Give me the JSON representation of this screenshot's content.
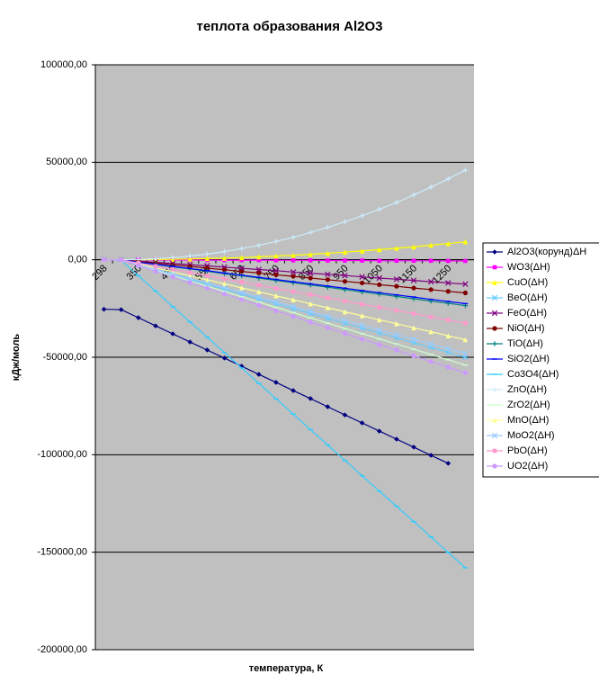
{
  "chart_data": {
    "type": "line",
    "title": "теплота образования Al2O3",
    "x_label": "температура, К",
    "y_label": "кДж/моль",
    "categories": [
      298,
      null,
      350,
      null,
      450,
      null,
      550,
      null,
      650,
      null,
      750,
      null,
      850,
      null,
      950,
      null,
      1050,
      null,
      1150,
      null,
      1250,
      null
    ],
    "ylim": [
      -200000,
      100000
    ],
    "yticks": [
      {
        "value": -200000,
        "label": "-200000,00"
      },
      {
        "value": -150000,
        "label": "-150000,00"
      },
      {
        "value": -100000,
        "label": "-100000,00"
      },
      {
        "value": -50000,
        "label": "-50000,00"
      },
      {
        "value": 0,
        "label": "0,00"
      },
      {
        "value": 50000,
        "label": "50000,00"
      },
      {
        "value": 100000,
        "label": "100000,00"
      }
    ],
    "grid": true,
    "background": "#c0c0c0",
    "legend": "right",
    "series": [
      {
        "name": "Al2O3(корунд)ΔH",
        "color": "#000080",
        "marker": "diamond",
        "values": [
          -25400,
          -25600,
          -29700,
          -33900,
          -38000,
          -42200,
          -46300,
          -50400,
          -54600,
          -58800,
          -62900,
          -67100,
          -71200,
          -75400,
          -79600,
          -83700,
          -87900,
          -92000,
          -96100,
          -100300,
          -104400,
          null
        ]
      },
      {
        "name": "WO3(ΔH)",
        "color": "#ff00ff",
        "marker": "square",
        "values": [
          0,
          0,
          0,
          -100,
          -100,
          -100,
          -200,
          -200,
          -200,
          -200,
          -300,
          -300,
          -300,
          -400,
          -400,
          -400,
          -500,
          -500,
          -500,
          -500,
          -600,
          -600
        ]
      },
      {
        "name": "CuO(ΔH)",
        "color": "#ffff00",
        "marker": "triangle",
        "values": [
          0,
          0,
          0,
          100,
          200,
          400,
          600,
          800,
          1100,
          1500,
          1900,
          2300,
          2800,
          3300,
          3900,
          4500,
          5200,
          5900,
          6600,
          7500,
          8300,
          9200
        ]
      },
      {
        "name": "BeO(ΔH)",
        "color": "#66ccff",
        "marker": "x",
        "values": [
          0,
          -100,
          -2600,
          -5100,
          -7600,
          -10100,
          -12600,
          -15100,
          -17600,
          -20100,
          -22600,
          -25100,
          -27600,
          -30100,
          -32600,
          -35100,
          -37600,
          -40000,
          -42500,
          -45000,
          -47500,
          -50000
        ]
      },
      {
        "name": "FeO(ΔH)",
        "color": "#800080",
        "marker": "x",
        "values": [
          0,
          0,
          -700,
          -1300,
          -1900,
          -2500,
          -3100,
          -3800,
          -4400,
          -5000,
          -5600,
          -6300,
          -6900,
          -7500,
          -8100,
          -8800,
          -9400,
          -10000,
          -10600,
          -11300,
          -11900,
          -12500
        ]
      },
      {
        "name": "NiO(ΔH)",
        "color": "#800000",
        "marker": "circle",
        "values": [
          0,
          0,
          -900,
          -1700,
          -2600,
          -3400,
          -4300,
          -5100,
          -6000,
          -6800,
          -7700,
          -8500,
          -9400,
          -10200,
          -11100,
          -11900,
          -12800,
          -13600,
          -14500,
          -15300,
          -16200,
          -17000
        ]
      },
      {
        "name": "TiO(ΔH)",
        "color": "#008080",
        "marker": "plus",
        "values": [
          0,
          0,
          -1200,
          -2400,
          -3600,
          -4700,
          -5900,
          -7100,
          -8200,
          -9400,
          -10600,
          -11800,
          -12900,
          -14100,
          -15300,
          -16500,
          -17600,
          -18800,
          -20000,
          -21200,
          -22300,
          -23500
        ]
      },
      {
        "name": "SiO2(ΔH)",
        "color": "#0000ff",
        "marker": "dash",
        "values": [
          0,
          0,
          -1200,
          -2300,
          -3400,
          -4500,
          -5600,
          -6800,
          -7900,
          -9000,
          -10100,
          -11300,
          -12400,
          -13500,
          -14600,
          -15800,
          -16900,
          -18000,
          -19100,
          -20300,
          -21400,
          -22500
        ]
      },
      {
        "name": "Co3O4(ΔH)",
        "color": "#33ccff",
        "marker": "dash",
        "values": [
          0,
          -300,
          -8200,
          -16100,
          -24000,
          -31900,
          -39700,
          -47600,
          -55500,
          -63400,
          -71300,
          -79200,
          -87100,
          -95000,
          -102900,
          -110800,
          -118700,
          -126400,
          -134300,
          -142200,
          -150100,
          -158000
        ]
      },
      {
        "name": "ZnO(ΔH)",
        "color": "#ccecff",
        "marker": "plus",
        "values": [
          0,
          0,
          100,
          500,
          1100,
          1900,
          2900,
          4200,
          5700,
          7400,
          9400,
          11500,
          14000,
          16600,
          19500,
          22600,
          25900,
          29400,
          33200,
          37300,
          41500,
          46000
        ]
      },
      {
        "name": "ZrO2(ΔH)",
        "color": "#ccffcc",
        "marker": "dash",
        "values": [
          0,
          -100,
          -2800,
          -5500,
          -8200,
          -10900,
          -13600,
          -16300,
          -19000,
          -21700,
          -24400,
          -27100,
          -29800,
          -32500,
          -35200,
          -37900,
          -40600,
          -43200,
          -45900,
          -48600,
          -51300,
          -54000
        ]
      },
      {
        "name": "MnO(ΔH)",
        "color": "#ffff99",
        "marker": "triangle",
        "values": [
          0,
          -100,
          -2100,
          -4200,
          -6200,
          -8300,
          -10300,
          -12300,
          -14400,
          -16400,
          -18500,
          -20500,
          -22600,
          -24600,
          -26700,
          -28700,
          -30800,
          -32800,
          -34900,
          -36900,
          -39000,
          -41000
        ]
      },
      {
        "name": "MoO2(ΔH)",
        "color": "#99ccff",
        "marker": "x",
        "values": [
          0,
          -100,
          -2500,
          -4900,
          -7300,
          -9700,
          -12000,
          -14400,
          -16800,
          -19200,
          -21600,
          -24000,
          -26400,
          -28800,
          -31200,
          -33600,
          -36000,
          -38400,
          -40800,
          -43200,
          -45600,
          -48000
        ]
      },
      {
        "name": "PbO(ΔH)",
        "color": "#ff99cc",
        "marker": "square",
        "values": [
          0,
          -100,
          -1700,
          -3300,
          -4900,
          -6600,
          -8200,
          -9800,
          -11400,
          -13000,
          -14700,
          -16300,
          -17900,
          -19500,
          -21200,
          -22800,
          -24400,
          -26000,
          -27600,
          -29300,
          -30900,
          -32500
        ]
      },
      {
        "name": "UO2(ΔH)",
        "color": "#cc99ff",
        "marker": "circle",
        "values": [
          0,
          -100,
          -3000,
          -5900,
          -8800,
          -11700,
          -14600,
          -17500,
          -20400,
          -23300,
          -26200,
          -29100,
          -32000,
          -34900,
          -37800,
          -40700,
          -43600,
          -46400,
          -49300,
          -52200,
          -55100,
          -58000
        ]
      }
    ]
  }
}
